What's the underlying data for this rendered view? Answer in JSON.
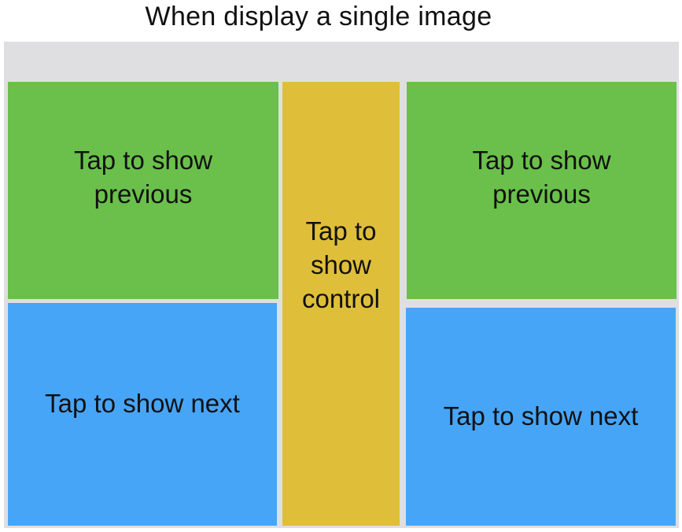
{
  "title": "When display a single image",
  "colors": {
    "frame": "#dfdfe1",
    "previous_zone": "#6ac04b",
    "next_zone": "#47a5f7",
    "control_zone": "#dfbe3a"
  },
  "zones": {
    "left_previous": "Tap to show previous",
    "left_next": "Tap to show next",
    "center_control": "Tap to show control",
    "right_previous": "Tap to show previous",
    "right_next": "Tap to show next"
  }
}
